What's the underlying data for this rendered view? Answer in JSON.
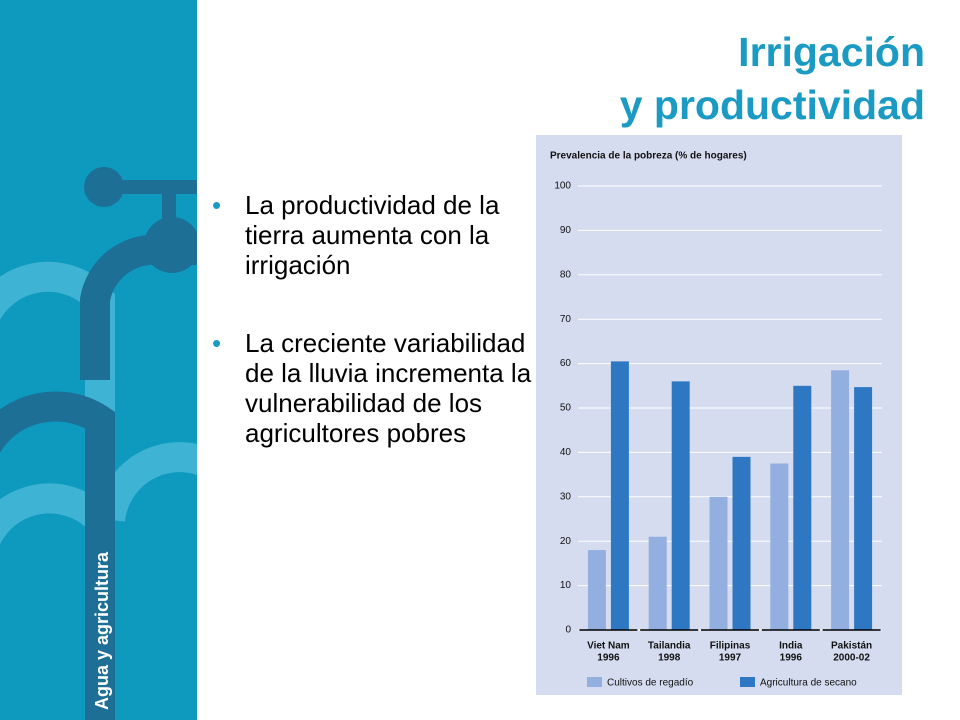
{
  "slide": {
    "title_line1": "Irrigación",
    "title_line2": "y productividad",
    "side_label": "Agua y agricultura",
    "bullets": [
      "La productividad de la tierra aumenta con la irrigación",
      "La creciente variabilidad de la lluvia incrementa la vulnerabilidad de los agricultores pobres"
    ]
  },
  "chart_data": {
    "type": "bar",
    "title": "Prevalencia de la pobreza (% de hogares)",
    "categories": [
      "Viet Nam",
      "Tailandia",
      "Filipinas",
      "India",
      "Pakistán"
    ],
    "category_sublabels": [
      "1996",
      "1998",
      "1997",
      "1996",
      "2000-02"
    ],
    "series": [
      {
        "name": "Cultivos de regadío",
        "color": "#93afe0",
        "values": [
          18,
          21,
          30,
          37.5,
          58.5
        ]
      },
      {
        "name": "Agricultura de secano",
        "color": "#2e78c3",
        "values": [
          60.5,
          56,
          39,
          55,
          54.7
        ]
      }
    ],
    "ylim": [
      0,
      100
    ],
    "yticks": [
      0,
      10,
      20,
      30,
      40,
      50,
      60,
      70,
      80,
      90,
      100
    ],
    "grid": true
  }
}
